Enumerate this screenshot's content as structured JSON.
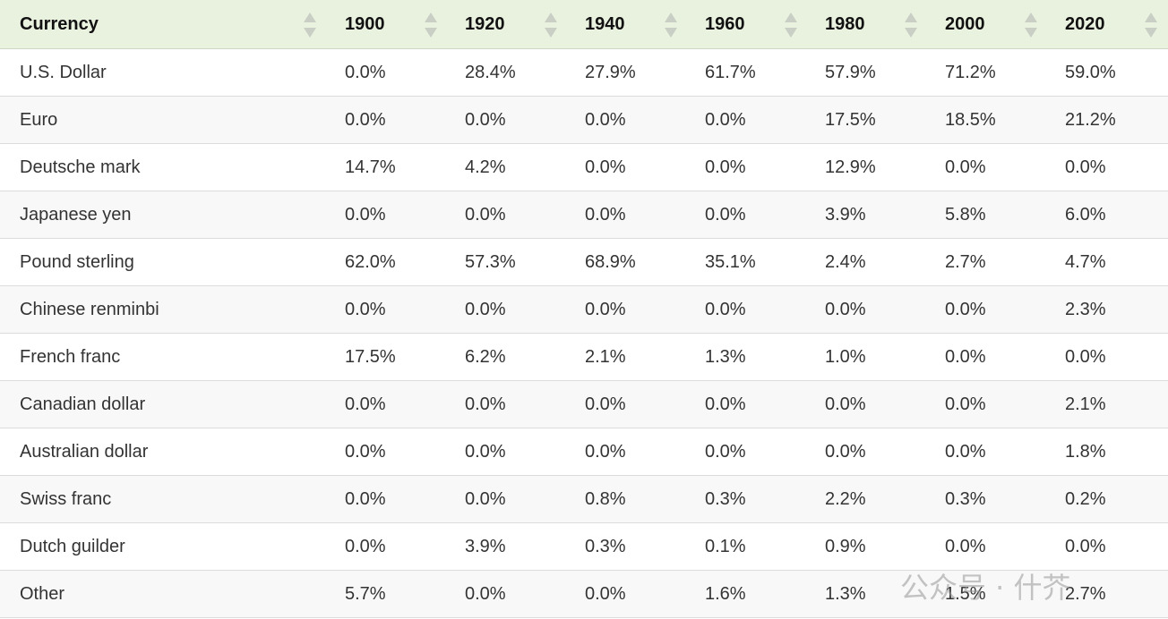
{
  "table": {
    "header": [
      "Currency",
      "1900",
      "1920",
      "1940",
      "1960",
      "1980",
      "2000",
      "2020"
    ],
    "rows": [
      [
        "U.S. Dollar",
        "0.0%",
        "28.4%",
        "27.9%",
        "61.7%",
        "57.9%",
        "71.2%",
        "59.0%"
      ],
      [
        "Euro",
        "0.0%",
        "0.0%",
        "0.0%",
        "0.0%",
        "17.5%",
        "18.5%",
        "21.2%"
      ],
      [
        "Deutsche mark",
        "14.7%",
        "4.2%",
        "0.0%",
        "0.0%",
        "12.9%",
        "0.0%",
        "0.0%"
      ],
      [
        "Japanese yen",
        "0.0%",
        "0.0%",
        "0.0%",
        "0.0%",
        "3.9%",
        "5.8%",
        "6.0%"
      ],
      [
        "Pound sterling",
        "62.0%",
        "57.3%",
        "68.9%",
        "35.1%",
        "2.4%",
        "2.7%",
        "4.7%"
      ],
      [
        "Chinese renminbi",
        "0.0%",
        "0.0%",
        "0.0%",
        "0.0%",
        "0.0%",
        "0.0%",
        "2.3%"
      ],
      [
        "French franc",
        "17.5%",
        "6.2%",
        "2.1%",
        "1.3%",
        "1.0%",
        "0.0%",
        "0.0%"
      ],
      [
        "Canadian dollar",
        "0.0%",
        "0.0%",
        "0.0%",
        "0.0%",
        "0.0%",
        "0.0%",
        "2.1%"
      ],
      [
        "Australian dollar",
        "0.0%",
        "0.0%",
        "0.0%",
        "0.0%",
        "0.0%",
        "0.0%",
        "1.8%"
      ],
      [
        "Swiss franc",
        "0.0%",
        "0.0%",
        "0.8%",
        "0.3%",
        "2.2%",
        "0.3%",
        "0.2%"
      ],
      [
        "Dutch guilder",
        "0.0%",
        "3.9%",
        "0.3%",
        "0.1%",
        "0.9%",
        "0.0%",
        "0.0%"
      ],
      [
        "Other",
        "5.7%",
        "0.0%",
        "0.0%",
        "1.6%",
        "1.3%",
        "1.5%",
        "2.7%"
      ]
    ]
  },
  "watermark": "公众号 · 什芥"
}
